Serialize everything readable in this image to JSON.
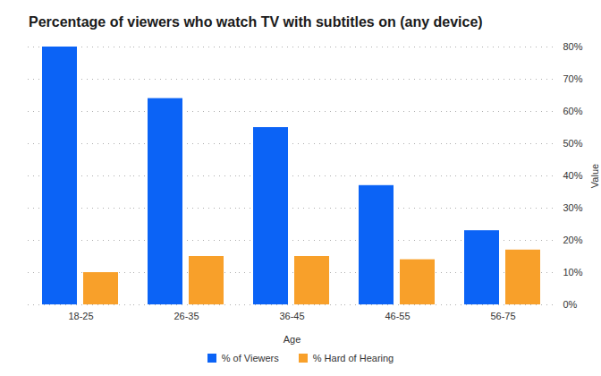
{
  "chart_data": {
    "type": "bar",
    "title": "Percentage of viewers who watch TV with subtitles on (any device)",
    "x_label": "Age",
    "y_label": "Value",
    "categories": [
      "18-25",
      "26-35",
      "36-45",
      "46-55",
      "56-75"
    ],
    "series": [
      {
        "name": "% of Viewers",
        "color": "#0b63f6",
        "values": [
          80,
          64,
          55,
          37,
          23
        ]
      },
      {
        "name": "% Hard of Hearing",
        "color": "#f8a02a",
        "values": [
          10,
          15,
          15,
          14,
          17
        ]
      }
    ],
    "ylim": [
      0,
      80
    ],
    "yticks": [
      {
        "value": 0,
        "label": "0%"
      },
      {
        "value": 10,
        "label": "10%"
      },
      {
        "value": 20,
        "label": "20%"
      },
      {
        "value": 30,
        "label": "30%"
      },
      {
        "value": 40,
        "label": "40%"
      },
      {
        "value": 50,
        "label": "50%"
      },
      {
        "value": 60,
        "label": "60%"
      },
      {
        "value": 70,
        "label": "70%"
      },
      {
        "value": 80,
        "label": "80%"
      }
    ],
    "grid": true,
    "legend": "bottom"
  }
}
